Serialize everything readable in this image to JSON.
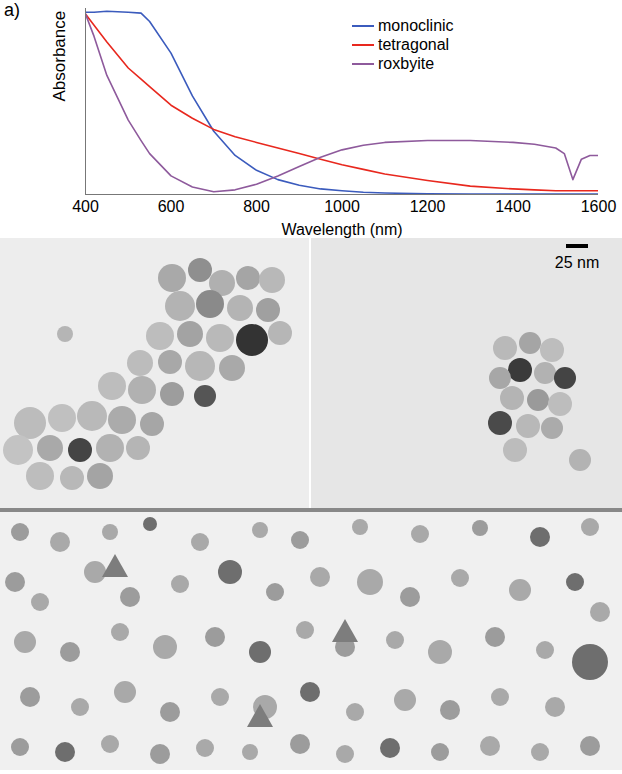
{
  "chart_data": {
    "type": "line",
    "panel_label": "a)",
    "x_label": "Wavelength (nm)",
    "y_label": "Absorbance",
    "x": [
      400,
      420,
      450,
      500,
      530,
      550,
      600,
      650,
      700,
      750,
      800,
      850,
      900,
      950,
      1000,
      1050,
      1100,
      1200,
      1300,
      1400,
      1450,
      1500,
      1520,
      1540,
      1560,
      1580,
      1600
    ],
    "series": [
      {
        "name": "monoclinic",
        "color": "#3b5bbd",
        "values": [
          0.98,
          0.98,
          0.985,
          0.98,
          0.975,
          0.93,
          0.76,
          0.53,
          0.34,
          0.21,
          0.13,
          0.08,
          0.05,
          0.03,
          0.02,
          0.012,
          0.008,
          0.004,
          0.003,
          0.002,
          0.002,
          0.002,
          0.002,
          0.002,
          0.002,
          0.002,
          0.002
        ]
      },
      {
        "name": "tetragonal",
        "color": "#e8281e",
        "values": [
          0.97,
          0.91,
          0.82,
          0.68,
          0.62,
          0.58,
          0.48,
          0.41,
          0.35,
          0.31,
          0.28,
          0.25,
          0.22,
          0.19,
          0.16,
          0.135,
          0.11,
          0.075,
          0.045,
          0.03,
          0.025,
          0.02,
          0.02,
          0.02,
          0.02,
          0.02,
          0.02
        ]
      },
      {
        "name": "roxbyite",
        "color": "#8e5a9c",
        "values": [
          0.97,
          0.85,
          0.64,
          0.4,
          0.29,
          0.22,
          0.1,
          0.04,
          0.015,
          0.025,
          0.055,
          0.1,
          0.15,
          0.2,
          0.24,
          0.265,
          0.28,
          0.29,
          0.29,
          0.28,
          0.27,
          0.25,
          0.22,
          0.08,
          0.19,
          0.21,
          0.21
        ]
      }
    ],
    "xlim": [
      400,
      1600
    ],
    "xticks": [
      400,
      600,
      800,
      1000,
      1200,
      1400,
      1600
    ],
    "ylim": [
      0,
      1
    ],
    "yticks": [],
    "tick_labels": "x",
    "legend": "top"
  },
  "micrographs": {
    "scale_bar": "25 nm"
  }
}
